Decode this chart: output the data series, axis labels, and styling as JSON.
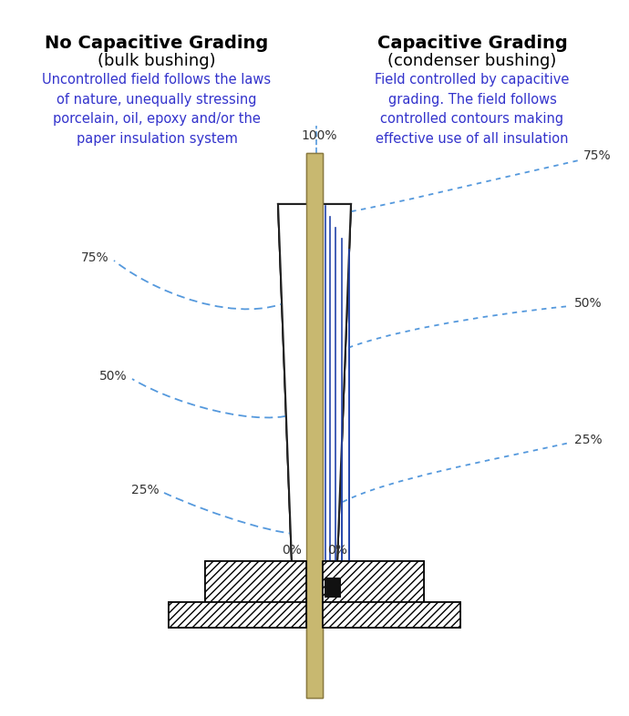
{
  "title_left_bold": "No Capacitive Grading",
  "title_left_sub": "(bulk bushing)",
  "title_right_bold": "Capacitive Grading",
  "title_right_sub": "(condenser bushing)",
  "desc_left": "Uncontrolled field follows the laws\nof nature, unequally stressing\nporcelain, oil, epoxy and/or the\npaper insulation system",
  "desc_right": "Field controlled by capacitive\ngrading. The field follows\ncontrolled contours making\neffective use of all insulation",
  "blue_text_color": "#3333cc",
  "conductor_color": "#c8b870",
  "conductor_outline": "#8a7a40",
  "bushing_outline": "#222222",
  "field_line_color": "#5599dd",
  "condenser_line_color": "#2244aa",
  "flange_hatch_color": "#444444",
  "black_box_color": "#111111",
  "background": "#ffffff"
}
